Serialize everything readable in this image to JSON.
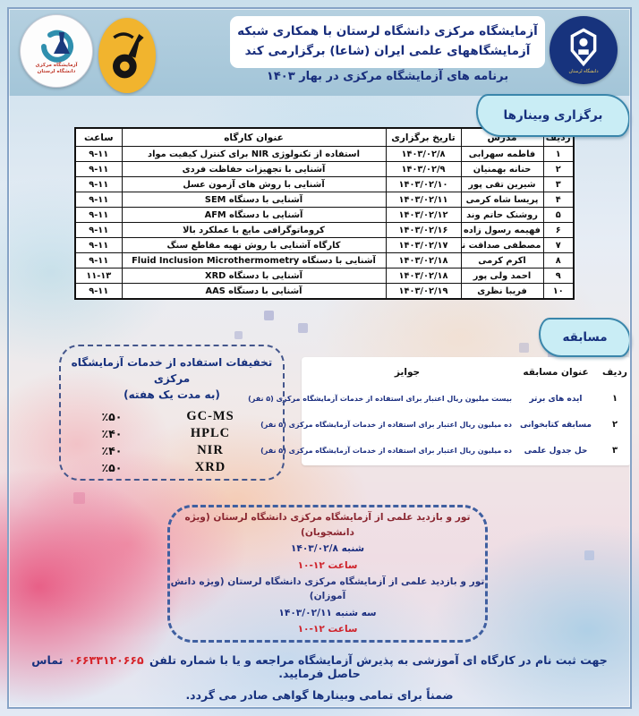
{
  "header": {
    "title_line1": "آزمایشگاه مرکزی دانشگاه لرستان با همکاری شبکه",
    "title_line2": "آزمایشگاههای علمی ایران (شاعا) برگزارمی کند",
    "subtitle": "برنامه های آزمایشگاه مرکزی در بهار ۱۴۰۳",
    "logos": {
      "university_label": "دانشگاه لرستان",
      "central_lab_label_line1": "آزمایشگاه مرکزی",
      "central_lab_label_line2": "دانشگاه لرستان"
    }
  },
  "webinars": {
    "section_label": "برگزاری وبینارها",
    "columns": [
      "ردیف",
      "مدرس",
      "تاریخ برگزاری",
      "عنوان کارگاه",
      "ساعت"
    ],
    "rows": [
      [
        "۱",
        "فاطمه سهرابی",
        "۱۴۰۳/۰۲/۸",
        "استفاده از تکنولوژی NIR برای کنترل کیفیت مواد",
        "۹-۱۱"
      ],
      [
        "۲",
        "حنانه بهمنیان",
        "۱۴۰۳/۰۲/۹",
        "آشنایی با تجهیزات حفاظت فردی",
        "۹-۱۱"
      ],
      [
        "۳",
        "شیرین تقی پور",
        "۱۴۰۳/۰۲/۱۰",
        "آشنایی با روش های آزمون عسل",
        "۹-۱۱"
      ],
      [
        "۴",
        "پریسا شاه کرمی",
        "۱۴۰۳/۰۲/۱۱",
        "آشنایی با دستگاه SEM",
        "۹-۱۱"
      ],
      [
        "۵",
        "روشنک حاتم وند",
        "۱۴۰۳/۰۲/۱۲",
        "آشنایی با دستگاه AFM",
        "۹-۱۱"
      ],
      [
        "۶",
        "فهیمه رسول زاده",
        "۱۴۰۳/۰۲/۱۶",
        "کروماتوگرافی مایع با عملکرد بالا",
        "۹-۱۱"
      ],
      [
        "۷",
        "مصطفی صداقت نیا",
        "۱۴۰۳/۰۲/۱۷",
        "کارگاه آشنایی با روش تهیه مقاطع سنگ",
        "۹-۱۱"
      ],
      [
        "۸",
        "اکرم کرمی",
        "۱۴۰۳/۰۲/۱۸",
        "آشنایی با دستگاه Fluid Inclusion Microthermometry",
        "۹-۱۱"
      ],
      [
        "۹",
        "احمد ولی پور",
        "۱۴۰۳/۰۲/۱۸",
        "آشنایی با دستگاه XRD",
        "۱۱-۱۳"
      ],
      [
        "۱۰",
        "فریبا نظری",
        "۱۴۰۳/۰۲/۱۹",
        "آشنایی با دستگاه AAS",
        "۹-۱۱"
      ]
    ]
  },
  "competition": {
    "section_label": "مسابقه",
    "columns": [
      "ردیف",
      "عنوان مسابقه",
      "جوایز"
    ],
    "rows": [
      [
        "۱",
        "ایده های برتر",
        "بیست میلیون ریال اعتبار برای استفاده از خدمات آزمایشگاه مرکزی (۵ نفر)"
      ],
      [
        "۲",
        "مسابقه کتابخوانی",
        "ده میلیون ریال اعتبار برای استفاده از خدمات آزمایشگاه مرکزی (۵ نفر)"
      ],
      [
        "۳",
        "حل جدول علمی",
        "ده میلیون ریال اعتبار برای استفاده از خدمات آزمایشگاه مرکزی (۵ نفر)"
      ]
    ]
  },
  "discounts": {
    "title_line1": "تخفیفات استفاده از خدمات آزمایشگاه مرکزی",
    "title_line2": "(به مدت یک هفته)",
    "items": [
      {
        "name": "GC-MS",
        "percent": "٪۵۰"
      },
      {
        "name": "HPLC",
        "percent": "٪۴۰"
      },
      {
        "name": "NIR",
        "percent": "٪۴۰"
      },
      {
        "name": "XRD",
        "percent": "٪۵۰"
      }
    ]
  },
  "tours": {
    "entries": [
      {
        "title": "تور و بازدید علمی از آزمایشگاه مرکزی دانشگاه لرستان (ویژه دانشجویان)",
        "day": "شنبه",
        "date": "۱۴۰۳/۰۲/۸",
        "time_label": "ساعت",
        "time_range": "۱۰-۱۲"
      },
      {
        "title": "تور و بازدید علمی از آزمایشگاه مرکزی دانشگاه لرستان (ویژه دانش آموزان)",
        "day": "سه شنبه",
        "date": "۱۴۰۳/۰۲/۱۱",
        "time_label": "ساعت",
        "time_range": "۱۰-۱۲"
      }
    ]
  },
  "footer": {
    "line1_before_phone": "جهت ثبت نام در کارگاه ای آموزشی به پذیرش آزمایشگاه مراجعه و یا با شماره تلفن",
    "phone": "۰۶۶۳۳۱۲۰۶۶۵",
    "line1_after_phone": "تماس حاصل فرمایید.",
    "line2": "ضمناً برای تمامی وبینارها گواهی صادر می گردد."
  },
  "colors": {
    "navy": "#17317e",
    "red": "#d6242a",
    "maroon": "#8a2630",
    "band_blue": "#a9c9db",
    "ribbon_bg": "#c9edf5",
    "university_logo_bg": "#17337d",
    "shaa_logo_bg": "#f1b42e"
  }
}
